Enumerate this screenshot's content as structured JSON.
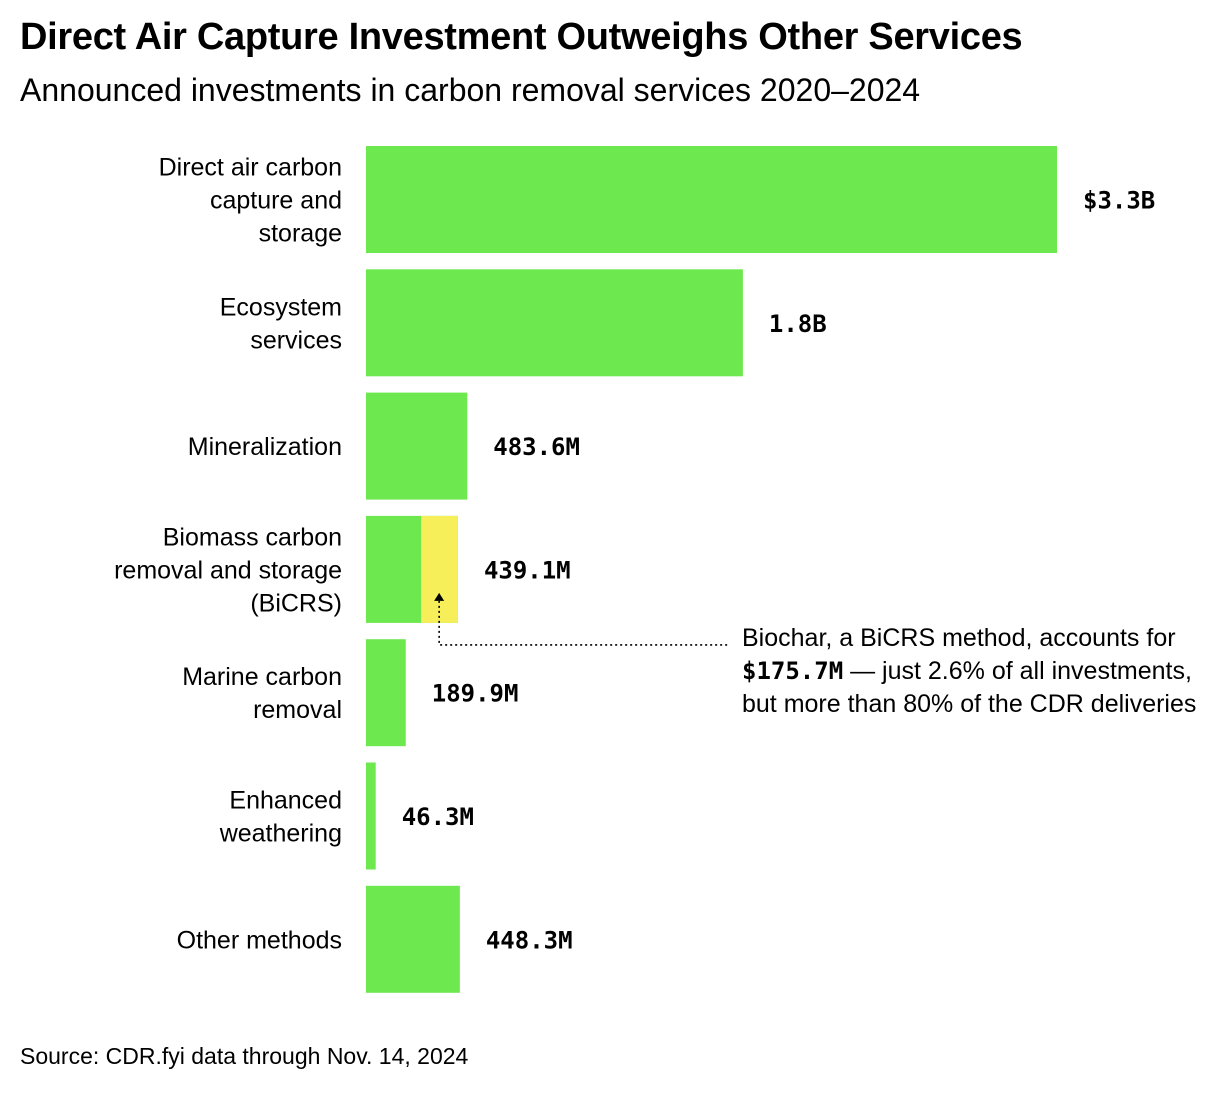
{
  "title": "Direct Air Capture Investment Outweighs Other Services",
  "subtitle": "Announced investments in carbon removal services 2020–2024",
  "source": "Source: CDR.fyi data through Nov. 14, 2024",
  "annotation": {
    "part1": "Biochar, a BiCRS method, accounts for ",
    "value": "$175.7M",
    "part2": " — just 2.6% of all investments, but more than 80% of the CDR deliveries"
  },
  "colors": {
    "bar": "#6de84f",
    "highlight": "#f7ef5a",
    "text": "#000000"
  },
  "chart_data": {
    "type": "bar",
    "orientation": "horizontal",
    "unit": "USD",
    "categories": [
      [
        "Direct air carbon",
        "capture and",
        "storage"
      ],
      [
        "Ecosystem",
        "services"
      ],
      [
        "Mineralization"
      ],
      [
        "Biomass carbon",
        "removal and storage",
        "(BiCRS)"
      ],
      [
        "Marine carbon",
        "removal"
      ],
      [
        "Enhanced",
        "weathering"
      ],
      [
        "Other methods"
      ]
    ],
    "values": [
      3300000000,
      1800000000,
      483600000,
      439100000,
      189900000,
      46300000,
      448300000
    ],
    "value_labels": [
      "$3.3B",
      "1.8B",
      "483.6M",
      "439.1M",
      "189.9M",
      "46.3M",
      "448.3M"
    ],
    "highlight": {
      "category_index": 3,
      "name": "Biochar",
      "value": 175700000
    },
    "grid": false,
    "legend": "none"
  }
}
